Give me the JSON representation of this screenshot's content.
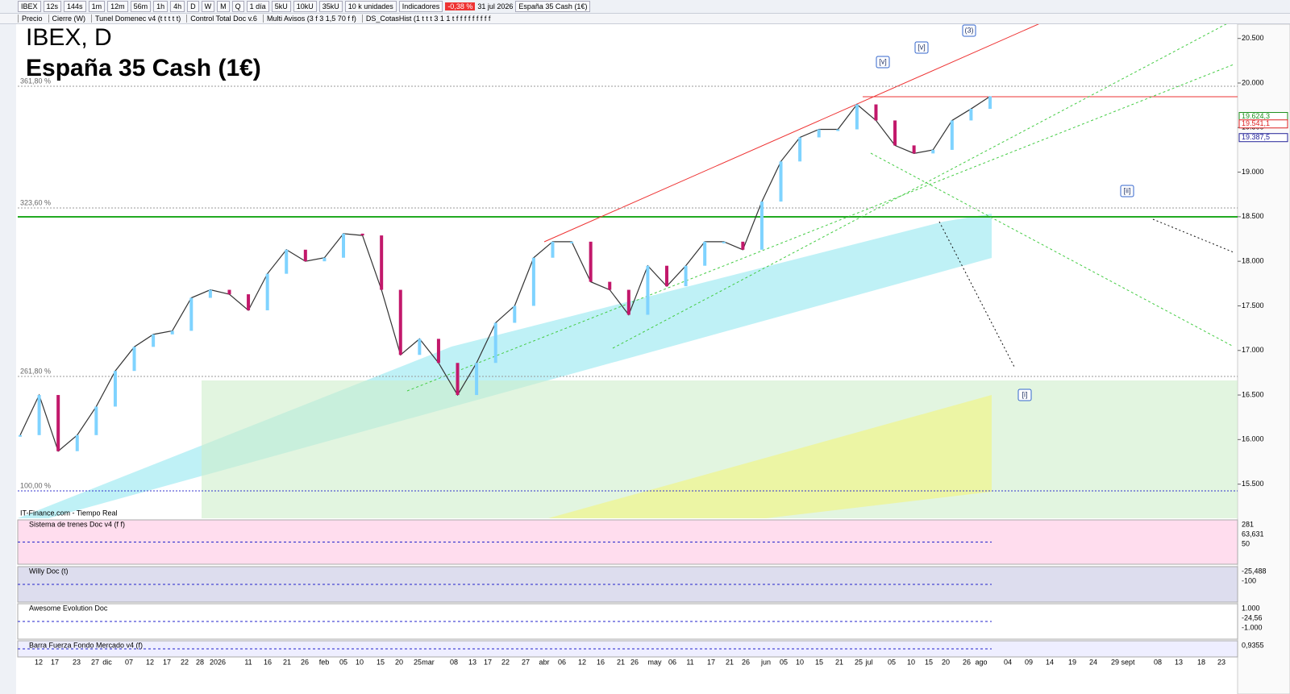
{
  "toolbar": {
    "symbol": "IBEX",
    "intervals": [
      "12s",
      "144s",
      "1m",
      "12m",
      "56m",
      "1h",
      "4h",
      "D",
      "W",
      "M",
      "Q"
    ],
    "period": "1 día",
    "units": [
      "5kU",
      "10kU",
      "35kU"
    ],
    "unit_select": "10 k unidades",
    "indicators": "Indicadores",
    "change": "-0,38 %",
    "date": "31 jul 2026",
    "instrument": "España 35 Cash (1€)"
  },
  "indicator_bar": [
    "Precio",
    "Cierre (W)",
    "Tunel Domenec v4 (t t t t t)",
    "Control Total Doc v.6",
    "Multi Avisos (3 f 3 1,5 70 f f)",
    "DS_CotasHist (1 t t t 3 1 1 t f f f f f f f f f"
  ],
  "chart": {
    "title": "IBEX, D",
    "subtitle": "España 35 Cash (1€)",
    "source": "IT-Finance.com - Tiempo Real",
    "ylim": [
      15117,
      20660
    ],
    "yticks": [
      {
        "value": 15500,
        "label": "15.500"
      },
      {
        "value": 16000,
        "label": "16.000"
      },
      {
        "value": 16500,
        "label": "16.500"
      },
      {
        "value": 17000,
        "label": "17.000"
      },
      {
        "value": 17500,
        "label": "17.500"
      },
      {
        "value": 18000,
        "label": "18.000"
      },
      {
        "value": 18500,
        "label": "18.500"
      },
      {
        "value": 19000,
        "label": "19.000"
      },
      {
        "value": 19500,
        "label": "19.500"
      },
      {
        "value": 20000,
        "label": "20.000"
      },
      {
        "value": 20500,
        "label": "20.500"
      }
    ],
    "dates": [
      "12",
      "17",
      "23",
      "27",
      "dic",
      "07",
      "12",
      "17",
      "22",
      "28",
      "2026",
      "11",
      "16",
      "21",
      "26",
      "feb",
      "05",
      "10",
      "15",
      "20",
      "25",
      "mar",
      "08",
      "13",
      "17",
      "22",
      "27",
      "abr",
      "06",
      "12",
      "16",
      "21",
      "26",
      "may",
      "06",
      "11",
      "17",
      "21",
      "26",
      "jun",
      "05",
      "10",
      "15",
      "21",
      "25",
      "jul",
      "05",
      "10",
      "15",
      "20",
      "26",
      "ago",
      "04",
      "09",
      "14",
      "19",
      "24",
      "29",
      "sept",
      "08",
      "13",
      "18",
      "23"
    ],
    "closes": [
      16050,
      16500,
      15870,
      16050,
      16370,
      16770,
      17040,
      17180,
      17220,
      17590,
      17680,
      17630,
      17450,
      17860,
      18130,
      18000,
      18040,
      18310,
      18290,
      17680,
      16950,
      17130,
      16860,
      16500,
      16860,
      17310,
      17500,
      18040,
      18220,
      18220,
      17770,
      17680,
      17400,
      17950,
      17720,
      17950,
      18220,
      18220,
      18130,
      18670,
      19120,
      19390,
      19480,
      19480,
      19760,
      19580,
      19300,
      19210,
      19250,
      19580,
      19710,
      19850
    ],
    "levels": [
      {
        "value": 19964,
        "label": "361,80 %"
      },
      {
        "value": 18598,
        "label": "323,60 %"
      },
      {
        "value": 16709,
        "label": "261,80 %"
      },
      {
        "value": 15425,
        "label": "100,00 %"
      }
    ],
    "waves": [
      "(3)",
      "[v]",
      "[v]",
      "[ii]",
      "[i]"
    ],
    "price_tags": [
      {
        "value": 19624.3,
        "label": "19.624,3"
      },
      {
        "value": 19541.1,
        "label": "19.541,1"
      },
      {
        "value": 19387.5,
        "label": "19.387,5"
      }
    ]
  },
  "panels": [
    {
      "title": "Sistema de trenes Doc v4 (f f)",
      "labels": [
        "281",
        "63,631",
        "50"
      ]
    },
    {
      "title": "Willy Doc (t)",
      "labels": [
        "-25,488",
        "-100"
      ]
    },
    {
      "title": "Awesome Evolution Doc",
      "labels": [
        "1.000",
        "-24,56",
        "-1.000"
      ]
    },
    {
      "title": "Barra Fuerza Fondo Mercado v4 (f)",
      "labels": [
        "0,9355"
      ]
    }
  ]
}
